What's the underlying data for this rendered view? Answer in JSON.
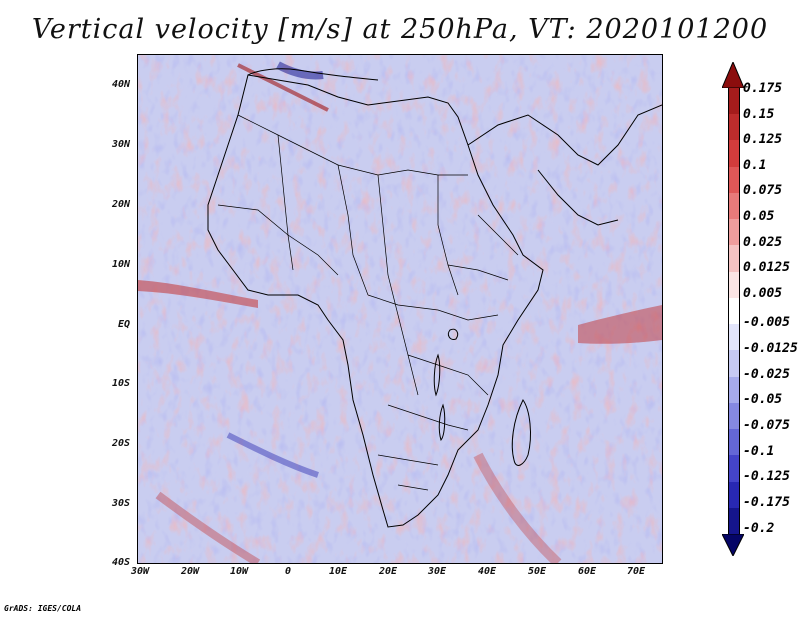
{
  "title": "Vertical velocity [m/s] at 250hPa, VT: 2020101200",
  "lat_labels": [
    "40N",
    "30N",
    "20N",
    "10N",
    "EQ",
    "10S",
    "20S",
    "30S",
    "40S"
  ],
  "lon_labels": [
    "30W",
    "20W",
    "10W",
    "0",
    "10E",
    "20E",
    "30E",
    "40E",
    "50E",
    "60E",
    "70E"
  ],
  "colorbar": {
    "labels": [
      "0.175",
      "0.15",
      "0.125",
      "0.1",
      "0.075",
      "0.05",
      "0.025",
      "0.0125",
      "0.005",
      "-0.005",
      "-0.0125",
      "-0.025",
      "-0.05",
      "-0.075",
      "-0.1",
      "-0.125",
      "-0.175",
      "-0.2"
    ],
    "colors": [
      "#8b0d0d",
      "#a51c1c",
      "#bd2c2c",
      "#d23c3c",
      "#df5757",
      "#e87a7a",
      "#ef9d9d",
      "#f5c3c3",
      "#fbe5e5",
      "#ffffff",
      "#e3e5fb",
      "#c6caf3",
      "#a6abeb",
      "#8589e1",
      "#6467d6",
      "#4444c9",
      "#2828b2",
      "#15158c",
      "#050566"
    ]
  },
  "footer": "GrADS: IGES/COLA"
}
